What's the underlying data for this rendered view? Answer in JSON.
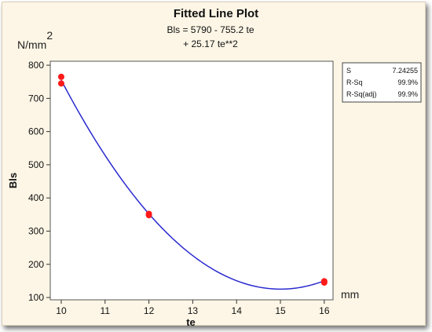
{
  "chart_data": {
    "type": "scatter",
    "title": "Fitted Line Plot",
    "equation_line1": "Bls =  5790 - 755.2 te",
    "equation_line2": "+ 25.17 te**2",
    "xlabel": "te",
    "ylabel": "Bls",
    "y_unit_prefix": "N/mm",
    "y_unit_exp": "2",
    "x_unit": "mm",
    "xlim": [
      9.75,
      16.2
    ],
    "ylim": [
      93,
      812
    ],
    "xticks": [
      10,
      11,
      12,
      13,
      14,
      15,
      16
    ],
    "yticks": [
      100,
      200,
      300,
      400,
      500,
      600,
      700,
      800
    ],
    "points": [
      {
        "x": 10,
        "y": 765
      },
      {
        "x": 10,
        "y": 745
      },
      {
        "x": 12,
        "y": 352
      },
      {
        "x": 12,
        "y": 348
      },
      {
        "x": 16,
        "y": 149
      },
      {
        "x": 16,
        "y": 145
      }
    ],
    "fit": {
      "intercept": 5790,
      "linear": -755.2,
      "quadratic": 25.17
    },
    "stats": [
      {
        "label": "S",
        "value": "7.24255"
      },
      {
        "label": "R-Sq",
        "value": "99.9%"
      },
      {
        "label": "R-Sq(adj)",
        "value": "99.9%"
      }
    ],
    "line_color": "#2a2ad0",
    "point_color": "#ff1a1a"
  }
}
